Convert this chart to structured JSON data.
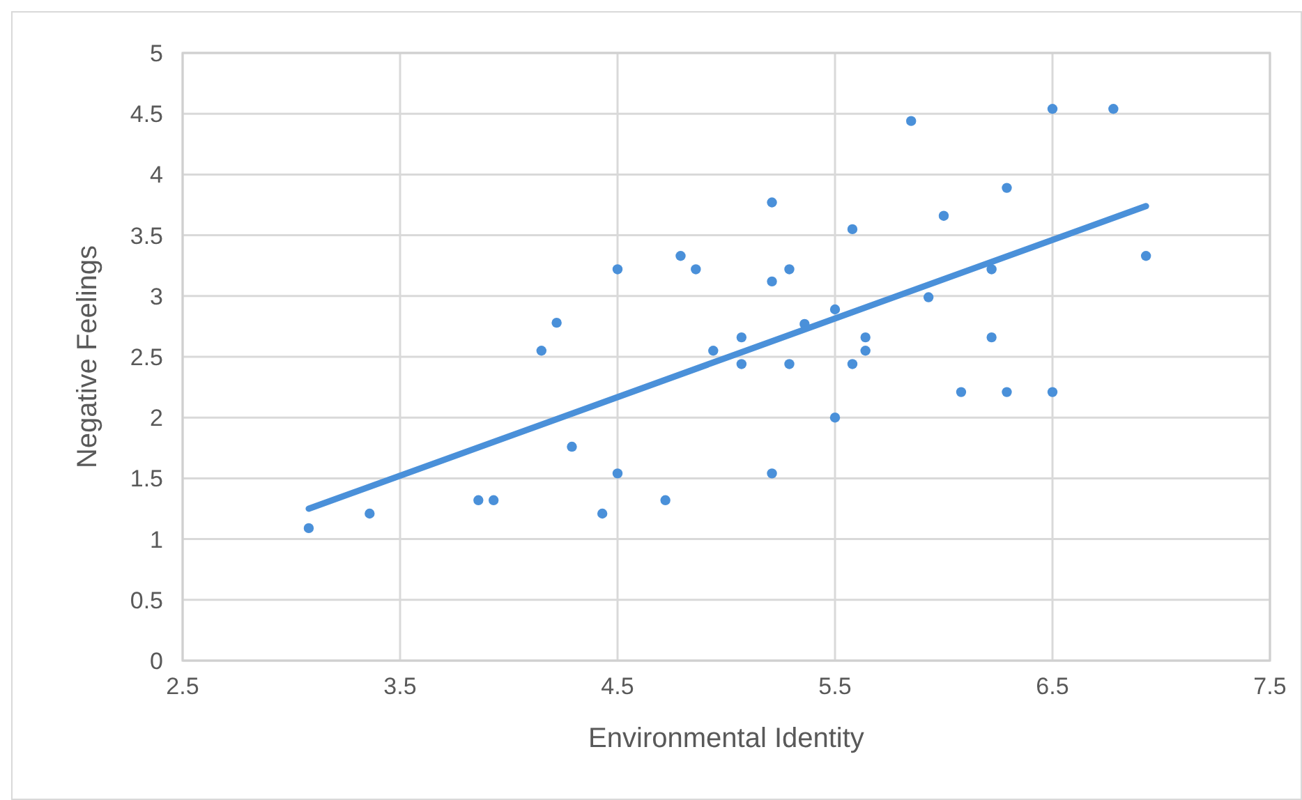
{
  "chart_data": {
    "type": "scatter",
    "xlabel": "Environmental Identity",
    "ylabel": "Negative Feelings",
    "xlim": [
      2.5,
      7.5
    ],
    "xticks": [
      2.5,
      3.5,
      4.5,
      5.5,
      6.5,
      7.5
    ],
    "ylim": [
      0,
      5
    ],
    "yticks": [
      0,
      0.5,
      1,
      1.5,
      2,
      2.5,
      3,
      3.5,
      4,
      4.5,
      5
    ],
    "grid": true,
    "series": [
      {
        "color": "#4a90d9",
        "marker": "circle",
        "x": [
          3.08,
          3.36,
          3.86,
          3.93,
          4.15,
          4.22,
          4.29,
          4.43,
          4.5,
          4.5,
          4.72,
          4.79,
          4.86,
          4.94,
          5.07,
          5.07,
          5.21,
          5.21,
          5.21,
          5.29,
          5.29,
          5.36,
          5.5,
          5.5,
          5.58,
          5.58,
          5.64,
          5.64,
          5.85,
          5.93,
          6.0,
          6.08,
          6.22,
          6.22,
          6.29,
          6.29,
          6.5,
          6.5,
          6.78,
          6.93
        ],
        "values": [
          1.09,
          1.21,
          1.32,
          1.32,
          2.55,
          2.78,
          1.76,
          1.21,
          3.22,
          1.54,
          1.32,
          3.33,
          3.22,
          2.55,
          2.66,
          2.44,
          3.77,
          3.12,
          1.54,
          3.22,
          2.44,
          2.77,
          2.89,
          2.0,
          3.55,
          2.44,
          2.66,
          2.55,
          4.44,
          2.99,
          3.66,
          2.21,
          2.66,
          3.22,
          3.89,
          2.21,
          4.54,
          2.21,
          4.54,
          3.33
        ]
      },
      {
        "type": "line",
        "marker": "none",
        "color": "#4a90d9",
        "x": [
          3.08,
          6.93
        ],
        "values": [
          1.25,
          3.74
        ]
      }
    ]
  }
}
